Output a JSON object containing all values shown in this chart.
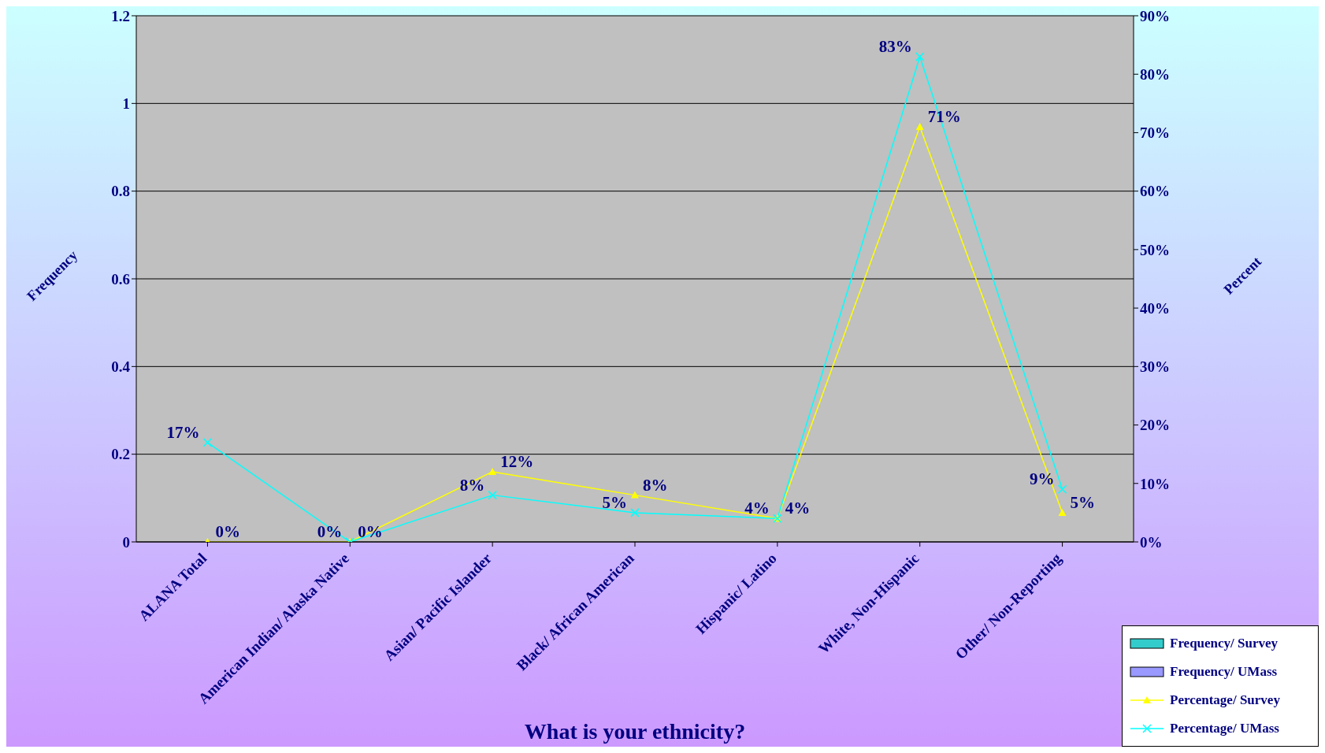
{
  "chart_data": {
    "type": "line",
    "xlabel": "What is your ethnicity?",
    "ylabel": "Frequency",
    "y2label": "Percent",
    "categories": [
      "ALANA Total",
      "American Indian/ Alaska Native",
      "Asian/ Pacific Islander",
      "Black/ African American",
      "Hispanic/ Latino",
      "White, Non-Hispanic",
      "Other/ Non-Reporting"
    ],
    "ylim": [
      0,
      1.2
    ],
    "yticks": [
      0,
      0.2,
      0.4,
      0.6,
      0.8,
      1,
      1.2
    ],
    "y2lim": [
      0,
      90
    ],
    "y2ticks": [
      {
        "value": 0,
        "label": "0%"
      },
      {
        "value": 10,
        "label": "10%"
      },
      {
        "value": 20,
        "label": "20%"
      },
      {
        "value": 30,
        "label": "30%"
      },
      {
        "value": 40,
        "label": "40%"
      },
      {
        "value": 50,
        "label": "50%"
      },
      {
        "value": 60,
        "label": "60%"
      },
      {
        "value": 70,
        "label": "70%"
      },
      {
        "value": 80,
        "label": "80%"
      },
      {
        "value": 90,
        "label": "90%"
      }
    ],
    "grid": "y",
    "legend": "bottom right",
    "series": [
      {
        "name": "Frequency/ Survey",
        "type": "bar",
        "color": "#33cccc",
        "values": [
          null,
          null,
          null,
          null,
          null,
          null,
          null
        ]
      },
      {
        "name": "Frequency/ UMass",
        "type": "bar",
        "color": "#9999ff",
        "values": [
          null,
          null,
          null,
          null,
          null,
          null,
          null
        ]
      },
      {
        "name": "Percentage/ Survey",
        "axis": "y2",
        "color": "#ffff00",
        "marker": "triangle",
        "values": [
          0,
          0,
          12,
          8,
          4,
          71,
          5
        ],
        "value_labels": [
          "0%",
          "0%",
          "12%",
          "8%",
          "4%",
          "71%",
          "5%"
        ]
      },
      {
        "name": "Percentage/ UMass",
        "axis": "y2",
        "color": "#00ffff",
        "marker": "cross",
        "values": [
          17,
          0,
          8,
          5,
          4,
          83,
          9
        ],
        "value_labels": [
          "17%",
          "0%",
          "8%",
          "5%",
          "4%",
          "83%",
          "9%"
        ]
      }
    ]
  }
}
